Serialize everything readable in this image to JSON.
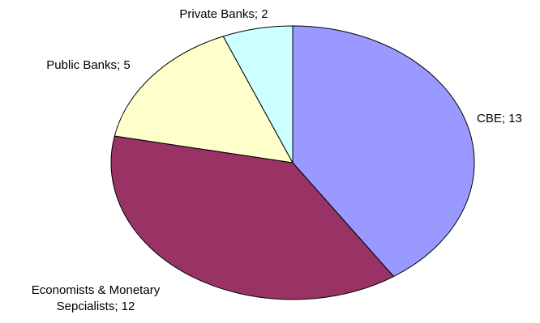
{
  "chart_data": {
    "type": "pie",
    "title": "",
    "slices": [
      {
        "label": "CBE",
        "value": 13,
        "color": "#9999FF",
        "data_label_lines": [
          "CBE; 13"
        ]
      },
      {
        "label": "Economists & Monetary Sepcialists",
        "value": 12,
        "color": "#993366",
        "data_label_lines": [
          "Economists & Monetary",
          "Sepcialists; 12"
        ]
      },
      {
        "label": "Public Banks",
        "value": 5,
        "color": "#FFFFCC",
        "data_label_lines": [
          "Public Banks; 5"
        ]
      },
      {
        "label": "Private Banks",
        "value": 2,
        "color": "#CCFFFF",
        "data_label_lines": [
          "Private Banks; 2"
        ]
      }
    ],
    "start_angle": "12 o'clock",
    "direction": "clockwise",
    "legend": "none"
  }
}
